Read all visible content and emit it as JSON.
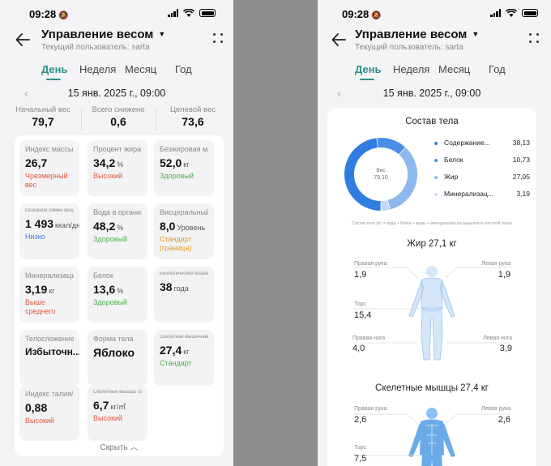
{
  "status": {
    "time": "09:28"
  },
  "header": {
    "title": "Управление весом",
    "subtitle": "Текущий пользователь: sarta"
  },
  "tabs": [
    {
      "label": "День",
      "active": true
    },
    {
      "label": "Неделя",
      "active": false
    },
    {
      "label": "Месяц",
      "active": false
    },
    {
      "label": "Год",
      "active": false
    }
  ],
  "date": "15 янв. 2025 г., 09:00",
  "summary": [
    {
      "label": "Начальный вес",
      "value": "79,7"
    },
    {
      "label": "Всего снижено",
      "value": "0,6"
    },
    {
      "label": "Целевой вес",
      "value": "73,6"
    }
  ],
  "metrics": [
    {
      "label": "Индекс массы тела",
      "value": "26,7",
      "unit": "",
      "status": "Чрезмерный вес",
      "status_color": "#e5573d"
    },
    {
      "label": "Процент жира",
      "value": "34,2",
      "unit": "%",
      "status": "Высокий",
      "status_color": "#e5573d"
    },
    {
      "label": "Безжировая масса",
      "value": "52,0",
      "unit": "кг",
      "status": "Здоровый",
      "status_color": "#4cb04a"
    },
    {
      "label": "Основной обмен веществ",
      "value": "1 493",
      "unit": "ккал/дн.",
      "status": "Низко",
      "status_color": "#3a7bd5"
    },
    {
      "label": "Вода в организме",
      "value": "48,2",
      "unit": "%",
      "status": "Здоровый",
      "status_color": "#4cb04a"
    },
    {
      "label": "Висцеральный жир",
      "value": "8,0",
      "unit": "Уровень",
      "status": "Стандарт (граница)",
      "status_color": "#eb9a20"
    },
    {
      "label": "Минерализация костей",
      "value": "3,19",
      "unit": "кг",
      "status": "Выше среднего",
      "status_color": "#e5573d"
    },
    {
      "label": "Белок",
      "value": "13,6",
      "unit": "%",
      "status": "Здоровый",
      "status_color": "#4cb04a"
    },
    {
      "label": "Биологический возраст",
      "value": "38",
      "unit": "года",
      "status": "",
      "status_color": "#4cb04a"
    },
    {
      "label": "Телосложение",
      "value": "Избыточн...",
      "unit": "",
      "status": "",
      "status_color": "#4cb04a"
    },
    {
      "label": "Форма тела",
      "value": "Яблоко",
      "unit": "",
      "status": "",
      "status_color": "#4cb04a"
    },
    {
      "label": "Скелетная мышечная масса",
      "value": "27,4",
      "unit": "кг",
      "status": "Стандарт",
      "status_color": "#4cb04a"
    },
    {
      "label": "Индекс талия/бедро",
      "value": "0,88",
      "unit": "",
      "status": "Высокий",
      "status_color": "#e5573d"
    },
    {
      "label": "Скелетные мышцы плотность",
      "value": "6,7",
      "unit": "кг/㎡",
      "status": "Высокий",
      "status_color": "#e5573d"
    }
  ],
  "hide_label": "Скрыть",
  "composition": {
    "title": "Состав тела",
    "center_label": "Вес",
    "center_value": "79,10",
    "items": [
      {
        "name": "Содержание...",
        "value": "38,13",
        "color": "#2f7de1"
      },
      {
        "name": "Белок",
        "value": "10,73",
        "color": "#4a8ee8"
      },
      {
        "name": "Жир",
        "value": "27,05",
        "color": "#8db7ef"
      },
      {
        "name": "Минерализац...",
        "value": "3,19",
        "color": "#c2d8f5"
      }
    ],
    "note": "Состав тела (кг) = вода + белки + жиры + минеральная насыщенность костной ткани"
  },
  "fat": {
    "title": "Жир 27,1 кг",
    "right_arm_label": "Правая рука",
    "right_arm": "1,9",
    "left_arm_label": "Левая рука",
    "left_arm": "1,9",
    "torso_label": "Торс",
    "torso": "15,4",
    "right_leg_label": "Правая нога",
    "right_leg": "4,0",
    "left_leg_label": "Левая нога",
    "left_leg": "3,9"
  },
  "muscle": {
    "title": "Скелетные мышцы 27,4 кг",
    "right_arm_label": "Правая рука",
    "right_arm": "2,6",
    "left_arm_label": "Левая рука",
    "left_arm": "2,6",
    "torso_label": "Торс",
    "torso": "7,5"
  }
}
